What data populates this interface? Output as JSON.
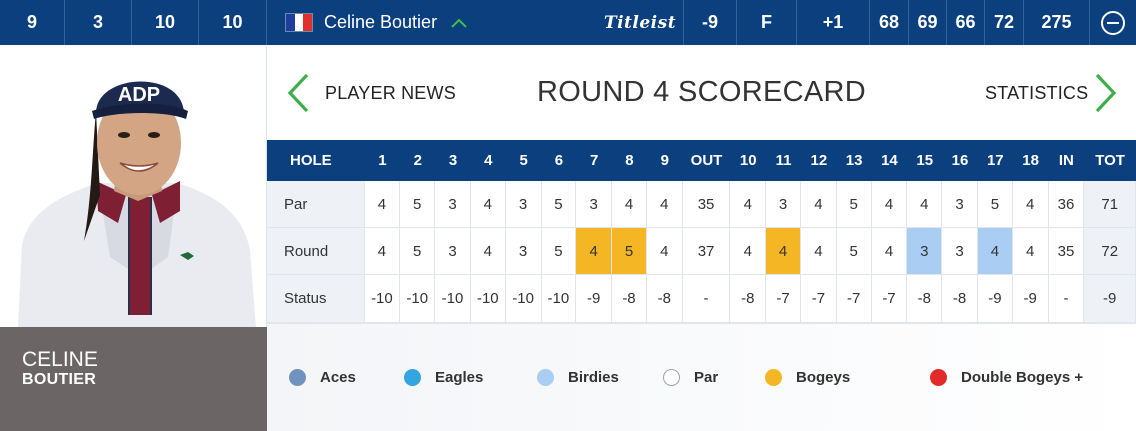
{
  "topbar": {
    "stats_left": [
      "9",
      "3",
      "10",
      "10"
    ],
    "player_name": "Celine Boutier",
    "flag_colors": [
      "#1f3e9c",
      "#ffffff",
      "#e0302c"
    ],
    "brand": "Titleist",
    "to_par": "-9",
    "thru": "F",
    "today": "+1",
    "rounds": [
      "68",
      "69",
      "66",
      "72"
    ],
    "total": "275",
    "collapse_icon": "minus-circle-icon"
  },
  "player": {
    "first_name": "CELINE",
    "last_name": "BOUTIER",
    "cap_text": "ADP"
  },
  "header": {
    "left_link": "PLAYER NEWS",
    "title": "ROUND 4 SCORECARD",
    "right_link": "STATISTICS",
    "left_icon": "chevron-left-icon",
    "right_icon": "chevron-right-icon"
  },
  "scorecard": {
    "header": [
      "HOLE",
      "1",
      "2",
      "3",
      "4",
      "5",
      "6",
      "7",
      "8",
      "9",
      "OUT",
      "10",
      "11",
      "12",
      "13",
      "14",
      "15",
      "16",
      "17",
      "18",
      "IN",
      "TOT"
    ],
    "rows": [
      {
        "label": "Par",
        "cells": [
          "4",
          "5",
          "3",
          "4",
          "3",
          "5",
          "3",
          "4",
          "4",
          "35",
          "4",
          "3",
          "4",
          "5",
          "4",
          "4",
          "3",
          "5",
          "4",
          "36",
          "71"
        ]
      },
      {
        "label": "Round",
        "cells": [
          "4",
          "5",
          "3",
          "4",
          "3",
          "5",
          "4",
          "5",
          "4",
          "37",
          "4",
          "4",
          "4",
          "5",
          "4",
          "3",
          "3",
          "4",
          "4",
          "35",
          "72"
        ],
        "marks": [
          "",
          "",
          "",
          "",
          "",
          "",
          "bogey",
          "bogey",
          "",
          "",
          "",
          "bogey",
          "",
          "",
          "",
          "birdie",
          "",
          "birdie",
          "",
          "",
          ""
        ]
      },
      {
        "label": "Status",
        "cells": [
          "-10",
          "-10",
          "-10",
          "-10",
          "-10",
          "-10",
          "-9",
          "-8",
          "-8",
          "-",
          "-8",
          "-7",
          "-7",
          "-7",
          "-7",
          "-8",
          "-8",
          "-9",
          "-9",
          "-",
          "-9"
        ]
      }
    ]
  },
  "legend": [
    {
      "label": "Aces",
      "color": "#6f93bd"
    },
    {
      "label": "Eagles",
      "color": "#33a6e2"
    },
    {
      "label": "Birdies",
      "color": "#a9cdf3"
    },
    {
      "label": "Par",
      "color": "#ffffff"
    },
    {
      "label": "Bogeys",
      "color": "#f4b624"
    },
    {
      "label": "Double Bogeys +",
      "color": "#e22a2a"
    }
  ]
}
